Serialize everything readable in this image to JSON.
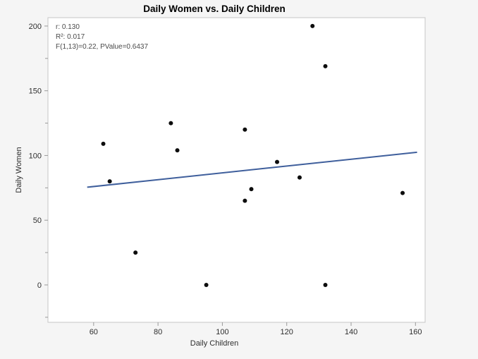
{
  "chart_data": {
    "type": "scatter",
    "title": "Daily Women vs. Daily Children",
    "xlabel": "Daily Children",
    "ylabel": "Daily Women",
    "annotation": {
      "r_line": "r: 0.130",
      "r2_line": "R²: 0.017",
      "f_line": "F(1,13)=0.22, PValue=0.6437"
    },
    "x_ticks": [
      "60",
      "80",
      "100",
      "120",
      "140",
      "160"
    ],
    "x_tick_values": [
      60,
      80,
      100,
      120,
      140,
      160
    ],
    "y_ticks": [
      "0",
      "50",
      "100",
      "150",
      "200"
    ],
    "y_tick_values": [
      0,
      50,
      100,
      150,
      200
    ],
    "y_minor_tick_values": [
      -25,
      25,
      75,
      125,
      175
    ],
    "xlim": [
      45.8,
      163.0
    ],
    "ylim": [
      -28.9,
      206.5
    ],
    "points": [
      [
        63,
        109
      ],
      [
        65,
        80
      ],
      [
        73,
        25
      ],
      [
        84,
        125
      ],
      [
        86,
        104
      ],
      [
        95,
        0
      ],
      [
        107,
        120
      ],
      [
        107,
        65
      ],
      [
        109,
        74
      ],
      [
        117,
        95
      ],
      [
        124,
        83
      ],
      [
        128,
        200
      ],
      [
        132,
        169
      ],
      [
        132,
        0
      ],
      [
        156,
        71
      ]
    ],
    "regression_line": {
      "x1": 58,
      "y1": 75.5,
      "x2": 160.5,
      "y2": 102.5
    },
    "legend": "none",
    "grid": "off",
    "colors": {
      "point": "#0d0d0d",
      "line": "#3f5f9c",
      "background": "#f5f5f5",
      "wall": "#ffffff",
      "frame": "#c6c6c6",
      "tick": "#999999",
      "tick_label": "#2e2e2e"
    }
  }
}
